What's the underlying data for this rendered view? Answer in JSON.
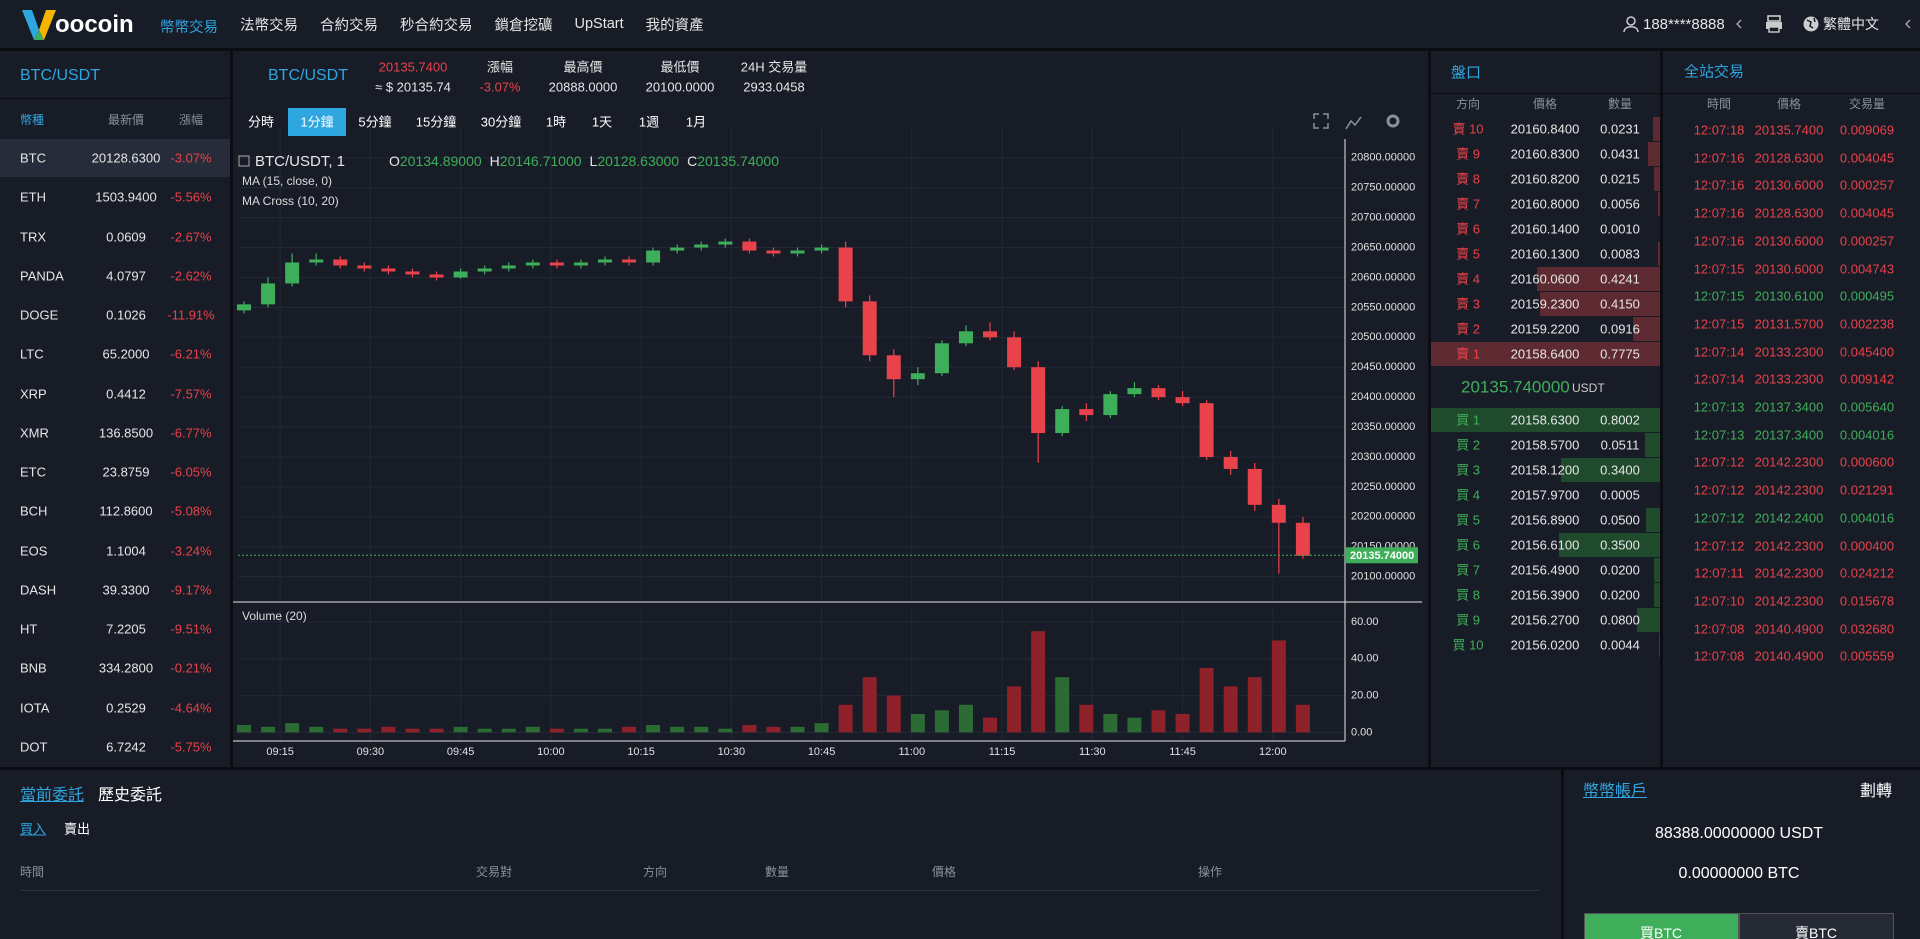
{
  "nav": {
    "logo": "oocoin",
    "items": [
      "幣幣交易",
      "法幣交易",
      "合約交易",
      "秒合約交易",
      "鎖倉挖礦",
      "UpStart",
      "我的資產"
    ],
    "user": "188****8888",
    "language": "繁體中文"
  },
  "markets": {
    "title": "BTC/USDT",
    "headers": [
      "幣種",
      "最新價",
      "漲幅"
    ],
    "rows": [
      [
        "BTC",
        "20128.6300",
        "-3.07%"
      ],
      [
        "ETH",
        "1503.9400",
        "-5.56%"
      ],
      [
        "TRX",
        "0.0609",
        "-2.67%"
      ],
      [
        "PANDA",
        "4.0797",
        "-2.62%"
      ],
      [
        "DOGE",
        "0.1026",
        "-11.91%"
      ],
      [
        "LTC",
        "65.2000",
        "-6.21%"
      ],
      [
        "XRP",
        "0.4412",
        "-7.57%"
      ],
      [
        "XMR",
        "136.8500",
        "-6.77%"
      ],
      [
        "ETC",
        "23.8759",
        "-6.05%"
      ],
      [
        "BCH",
        "112.8600",
        "-5.08%"
      ],
      [
        "EOS",
        "1.1004",
        "-3.24%"
      ],
      [
        "DASH",
        "39.3300",
        "-9.17%"
      ],
      [
        "HT",
        "7.2205",
        "-9.51%"
      ],
      [
        "BNB",
        "334.2800",
        "-0.21%"
      ],
      [
        "IOTA",
        "0.2529",
        "-4.64%"
      ],
      [
        "DOT",
        "6.7242",
        "-5.75%"
      ]
    ]
  },
  "ticker": {
    "pair": "BTC/USDT",
    "price": "20135.7400",
    "fiat": "≈ $ 20135.74",
    "labels": [
      "漲幅",
      "最高價",
      "最低價",
      "24H 交易量"
    ],
    "values": [
      "-3.07%",
      "20888.0000",
      "20100.0000",
      "2933.0458"
    ]
  },
  "intervals": [
    "分時",
    "1分鐘",
    "5分鐘",
    "15分鐘",
    "30分鐘",
    "1時",
    "1天",
    "1週",
    "1月"
  ],
  "active_interval": 1,
  "chart_data": {
    "type": "candlestick",
    "title": "BTC/USDT, 1",
    "ohlc_legend": [
      [
        "O",
        "20134.89000"
      ],
      [
        "H",
        "20146.71000"
      ],
      [
        "L",
        "20128.63000"
      ],
      [
        "C",
        "20135.74000"
      ]
    ],
    "indicators": [
      "MA (15, close, 0)",
      "MA Cross (10, 20)"
    ],
    "up_color": "#3fae5a",
    "down_color": "#e8424a",
    "volume_up_color": "#2d6b35",
    "volume_down_color": "#8e2129",
    "x": [
      "09:09",
      "09:13",
      "09:17",
      "09:21",
      "09:25",
      "09:29",
      "09:33",
      "09:37",
      "09:41",
      "09:45",
      "09:49",
      "09:53",
      "09:57",
      "10:01",
      "10:05",
      "10:09",
      "10:13",
      "10:17",
      "10:21",
      "10:25",
      "10:29",
      "10:33",
      "10:37",
      "10:41",
      "10:45",
      "10:49",
      "10:53",
      "10:57",
      "11:01",
      "11:05",
      "11:09",
      "11:13",
      "11:17",
      "11:21",
      "11:25",
      "11:29",
      "11:33",
      "11:37",
      "11:41",
      "11:45",
      "11:49",
      "11:53",
      "11:57",
      "12:01",
      "12:05"
    ],
    "series": [
      {
        "name": "BTC/USDT",
        "open": [
          20545,
          20555,
          20590,
          20625,
          20630,
          20620,
          20615,
          20610,
          20605,
          20600,
          20610,
          20615,
          20620,
          20625,
          20620,
          20625,
          20630,
          20625,
          20645,
          20650,
          20655,
          20660,
          20645,
          20640,
          20645,
          20650,
          20560,
          20470,
          20430,
          20440,
          20490,
          20510,
          20500,
          20450,
          20340,
          20380,
          20370,
          20405,
          20415,
          20400,
          20390,
          20300,
          20280,
          20220,
          20190
        ],
        "high": [
          20560,
          20600,
          20640,
          20640,
          20635,
          20625,
          20620,
          20615,
          20610,
          20615,
          20620,
          20625,
          20630,
          20630,
          20630,
          20635,
          20635,
          20650,
          20655,
          20660,
          20665,
          20665,
          20650,
          20650,
          20655,
          20660,
          20570,
          20480,
          20450,
          20495,
          20520,
          20525,
          20510,
          20460,
          20385,
          20390,
          20410,
          20425,
          20420,
          20410,
          20395,
          20310,
          20290,
          20230,
          20200
        ],
        "low": [
          20540,
          20550,
          20585,
          20620,
          20615,
          20610,
          20605,
          20600,
          20595,
          20598,
          20605,
          20610,
          20615,
          20615,
          20615,
          20620,
          20620,
          20620,
          20640,
          20645,
          20650,
          20640,
          20635,
          20635,
          20640,
          20550,
          20460,
          20400,
          20420,
          20435,
          20485,
          20495,
          20445,
          20290,
          20335,
          20360,
          20365,
          20400,
          20395,
          20385,
          20295,
          20270,
          20210,
          20105,
          20130
        ],
        "close": [
          20555,
          20590,
          20625,
          20630,
          20620,
          20615,
          20610,
          20605,
          20600,
          20610,
          20615,
          20620,
          20625,
          20620,
          20625,
          20630,
          20625,
          20645,
          20650,
          20655,
          20660,
          20645,
          20640,
          20645,
          20650,
          20560,
          20470,
          20430,
          20440,
          20490,
          20510,
          20500,
          20450,
          20340,
          20380,
          20370,
          20405,
          20415,
          20400,
          20390,
          20300,
          20280,
          20220,
          20190,
          20135
        ]
      },
      {
        "name": "Volume (20)",
        "axis": "y2",
        "values": [
          4,
          3,
          5,
          3,
          2,
          2,
          3,
          2,
          2,
          3,
          2,
          2,
          3,
          2,
          2,
          2,
          3,
          4,
          3,
          3,
          2,
          4,
          3,
          3,
          5,
          15,
          30,
          20,
          10,
          12,
          15,
          8,
          25,
          55,
          30,
          15,
          10,
          8,
          12,
          10,
          35,
          25,
          30,
          50,
          15
        ]
      }
    ],
    "current_price": {
      "value": 20135.74,
      "label": "20135.74000"
    },
    "xlim": [
      "09:08",
      "12:12"
    ],
    "xticks": [
      "09:15",
      "09:30",
      "09:45",
      "10:00",
      "10:15",
      "10:30",
      "10:45",
      "11:00",
      "11:15",
      "11:30",
      "11:45",
      "12:00"
    ],
    "ylim": [
      20061,
      20818
    ],
    "yticks": [
      {
        "value": 20100,
        "label": "20100.00000"
      },
      {
        "value": 20150,
        "label": "20150.00000"
      },
      {
        "value": 20200,
        "label": "20200.00000"
      },
      {
        "value": 20250,
        "label": "20250.00000"
      },
      {
        "value": 20300,
        "label": "20300.00000"
      },
      {
        "value": 20350,
        "label": "20350.00000"
      },
      {
        "value": 20400,
        "label": "20400.00000"
      },
      {
        "value": 20450,
        "label": "20450.00000"
      },
      {
        "value": 20500,
        "label": "20500.00000"
      },
      {
        "value": 20550,
        "label": "20550.00000"
      },
      {
        "value": 20600,
        "label": "20600.00000"
      },
      {
        "value": 20650,
        "label": "20650.00000"
      },
      {
        "value": 20700,
        "label": "20700.00000"
      },
      {
        "value": 20750,
        "label": "20750.00000"
      },
      {
        "value": 20800,
        "label": "20800.00000"
      }
    ],
    "y2lim": [
      -4.7,
      68.7
    ],
    "y2ticks": [
      {
        "value": 0,
        "label": "0.00"
      },
      {
        "value": 20,
        "label": "20.00"
      },
      {
        "value": 40,
        "label": "40.00"
      },
      {
        "value": 60,
        "label": "60.00"
      }
    ],
    "grid": true
  },
  "order_book": {
    "title": "盤口",
    "headers": [
      "方向",
      "價格",
      "數量"
    ],
    "asks": [
      [
        "賣 10",
        "20160.8400",
        "0.0231"
      ],
      [
        "賣 9",
        "20160.8300",
        "0.0431"
      ],
      [
        "賣 8",
        "20160.8200",
        "0.0215"
      ],
      [
        "賣 7",
        "20160.8000",
        "0.0056"
      ],
      [
        "賣 6",
        "20160.1400",
        "0.0010"
      ],
      [
        "賣 5",
        "20160.1300",
        "0.0083"
      ],
      [
        "賣 4",
        "20160.0600",
        "0.4241"
      ],
      [
        "賣 3",
        "20159.2300",
        "0.4150"
      ],
      [
        "賣 2",
        "20159.2200",
        "0.0916"
      ],
      [
        "賣 1",
        "20158.6400",
        "0.7775"
      ]
    ],
    "last_price": "20135.740000",
    "last_unit": "USDT",
    "bids": [
      [
        "買 1",
        "20158.6300",
        "0.8002"
      ],
      [
        "買 2",
        "20158.5700",
        "0.0511"
      ],
      [
        "買 3",
        "20158.1200",
        "0.3400"
      ],
      [
        "買 4",
        "20157.9700",
        "0.0005"
      ],
      [
        "買 5",
        "20156.8900",
        "0.0500"
      ],
      [
        "買 6",
        "20156.6100",
        "0.3500"
      ],
      [
        "買 7",
        "20156.4900",
        "0.0200"
      ],
      [
        "買 8",
        "20156.3900",
        "0.0200"
      ],
      [
        "買 9",
        "20156.2700",
        "0.0800"
      ],
      [
        "買 10",
        "20156.0200",
        "0.0044"
      ]
    ]
  },
  "trades": {
    "title": "全站交易",
    "headers": [
      "時間",
      "價格",
      "交易量"
    ],
    "rows": [
      {
        "time": "12:07:18",
        "price": "20135.7400",
        "amount": "0.009069",
        "color": "#e8424a"
      },
      {
        "time": "12:07:16",
        "price": "20128.6300",
        "amount": "0.004045",
        "color": "#e8424a"
      },
      {
        "time": "12:07:16",
        "price": "20130.6000",
        "amount": "0.000257",
        "color": "#e8424a"
      },
      {
        "time": "12:07:16",
        "price": "20128.6300",
        "amount": "0.004045",
        "color": "#e8424a"
      },
      {
        "time": "12:07:16",
        "price": "20130.6000",
        "amount": "0.000257",
        "color": "#e8424a"
      },
      {
        "time": "12:07:15",
        "price": "20130.6000",
        "amount": "0.004743",
        "color": "#e8424a"
      },
      {
        "time": "12:07:15",
        "price": "20130.6100",
        "amount": "0.000495",
        "color": "#3fae5a"
      },
      {
        "time": "12:07:15",
        "price": "20131.5700",
        "amount": "0.002238",
        "color": "#e8424a"
      },
      {
        "time": "12:07:14",
        "price": "20133.2300",
        "amount": "0.045400",
        "color": "#e8424a"
      },
      {
        "time": "12:07:14",
        "price": "20133.2300",
        "amount": "0.009142",
        "color": "#e8424a"
      },
      {
        "time": "12:07:13",
        "price": "20137.3400",
        "amount": "0.005640",
        "color": "#3fae5a"
      },
      {
        "time": "12:07:13",
        "price": "20137.3400",
        "amount": "0.004016",
        "color": "#3fae5a"
      },
      {
        "time": "12:07:12",
        "price": "20142.2300",
        "amount": "0.000600",
        "color": "#e8424a"
      },
      {
        "time": "12:07:12",
        "price": "20142.2300",
        "amount": "0.021291",
        "color": "#e8424a"
      },
      {
        "time": "12:07:12",
        "price": "20142.2400",
        "amount": "0.004016",
        "color": "#3fae5a"
      },
      {
        "time": "12:07:12",
        "price": "20142.2300",
        "amount": "0.000400",
        "color": "#e8424a"
      },
      {
        "time": "12:07:11",
        "price": "20142.2300",
        "amount": "0.024212",
        "color": "#e8424a"
      },
      {
        "time": "12:07:10",
        "price": "20142.2300",
        "amount": "0.015678",
        "color": "#e8424a"
      },
      {
        "time": "12:07:08",
        "price": "20140.4900",
        "amount": "0.032680",
        "color": "#e8424a"
      },
      {
        "time": "12:07:08",
        "price": "20140.4900",
        "amount": "0.005559",
        "color": "#e8424a"
      }
    ]
  },
  "orders": {
    "tabs": [
      "當前委託",
      "歷史委託"
    ],
    "subtabs": [
      "買入",
      "賣出"
    ],
    "headers": [
      "時間",
      "交易對",
      "方向",
      "數量",
      "價格",
      "操作"
    ]
  },
  "account": {
    "title": "幣幣帳戶",
    "transfer": "劃轉",
    "balances": [
      "88388.00000000 USDT",
      "0.00000000 BTC"
    ],
    "buttons": [
      "買BTC",
      "賣BTC"
    ]
  }
}
